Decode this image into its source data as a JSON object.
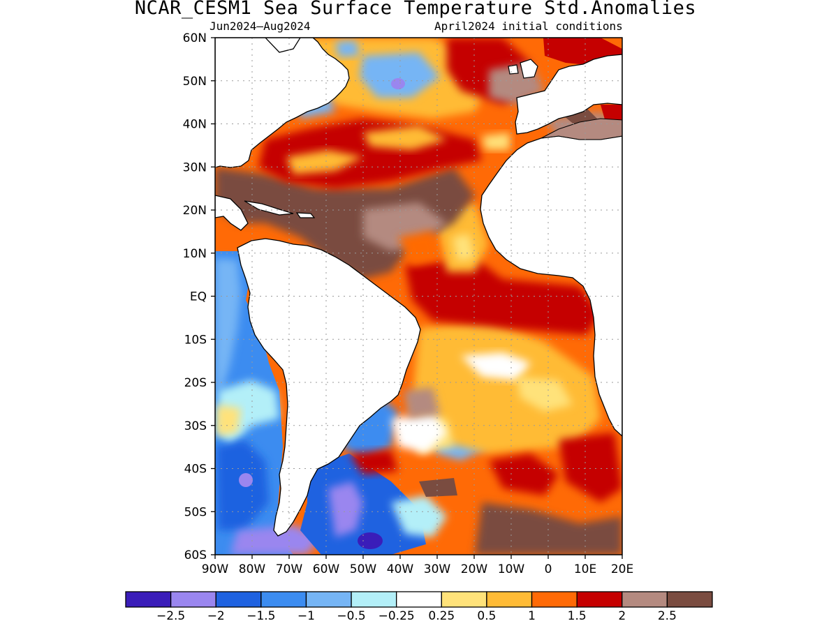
{
  "title": "NCAR_CESM1 Sea Surface Temperature Std.Anomalies",
  "period": "Jun2024–Aug2024",
  "init": "April2024 initial conditions",
  "lat_labels": [
    "60N",
    "50N",
    "40N",
    "30N",
    "20N",
    "10N",
    "EQ",
    "10S",
    "20S",
    "30S",
    "40S",
    "50S",
    "60S"
  ],
  "lon_labels": [
    "90W",
    "80W",
    "70W",
    "60W",
    "50W",
    "40W",
    "30W",
    "20W",
    "10W",
    "0",
    "10E",
    "20E"
  ],
  "colorbar": {
    "colors": [
      "#3a1db9",
      "#9a86ef",
      "#1f62e0",
      "#3c8cf0",
      "#76b5f5",
      "#b3eff8",
      "#ffffff",
      "#ffe27a",
      "#ffbb36",
      "#ff6a06",
      "#c50000",
      "#b48a80",
      "#7a4c40"
    ],
    "labels": [
      "−2.5",
      "−2",
      "−1.5",
      "−1",
      "−0.5",
      "−0.25",
      "0.25",
      "0.5",
      "1",
      "1.5",
      "2",
      "2.5"
    ]
  }
}
